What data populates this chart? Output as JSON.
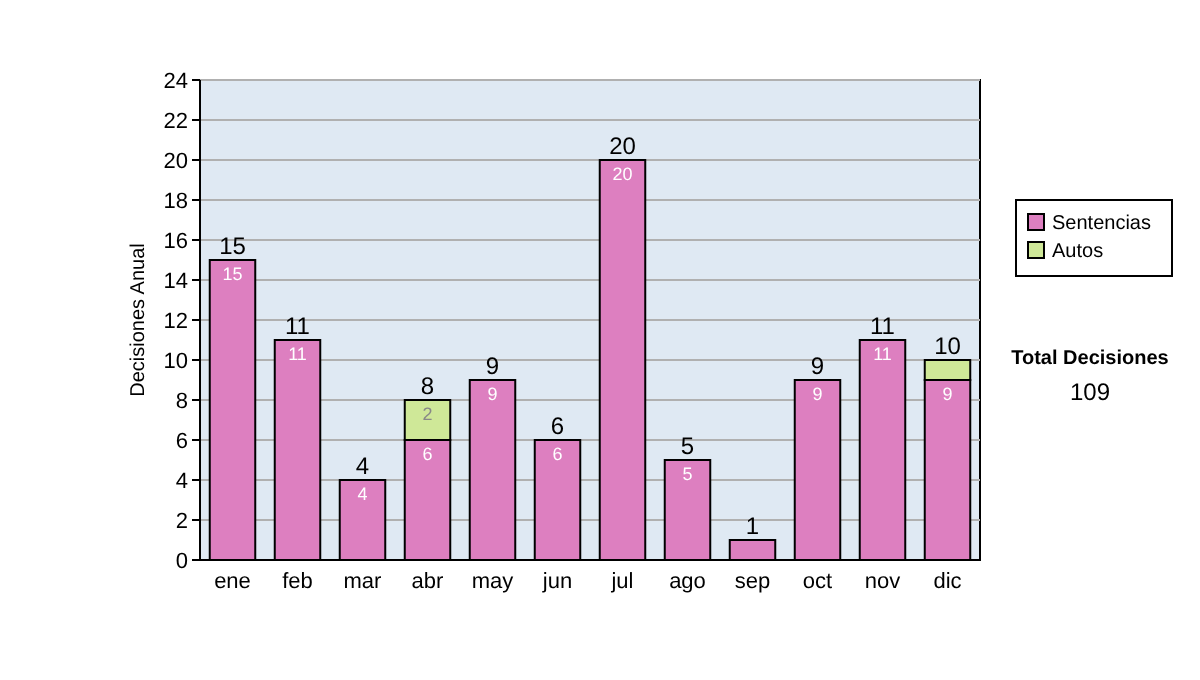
{
  "chart_data": {
    "type": "bar",
    "stacked": true,
    "ylabel": "Decisiones Anual",
    "categories": [
      "ene",
      "feb",
      "mar",
      "abr",
      "may",
      "jun",
      "jul",
      "ago",
      "sep",
      "oct",
      "nov",
      "dic"
    ],
    "series": [
      {
        "name": "Sentencias",
        "color": "#dd7fc0",
        "values": [
          15,
          11,
          4,
          6,
          9,
          6,
          20,
          5,
          1,
          9,
          11,
          9
        ],
        "value_labels": [
          "15",
          "11",
          "4",
          "6",
          "9",
          "6",
          "20",
          "5",
          null,
          "9",
          "11",
          "9"
        ]
      },
      {
        "name": "Autos",
        "color": "#cfe898",
        "values": [
          null,
          null,
          null,
          2,
          null,
          null,
          null,
          null,
          null,
          null,
          null,
          1
        ],
        "value_labels": [
          null,
          null,
          null,
          "2",
          null,
          null,
          null,
          null,
          null,
          null,
          null,
          null
        ]
      }
    ],
    "totals": [
      "15",
      "11",
      "4",
      "8",
      "9",
      "6",
      "20",
      "5",
      "1",
      "9",
      "11",
      "10"
    ],
    "ylim": [
      0,
      24
    ],
    "yticks": [
      0,
      2,
      4,
      6,
      8,
      10,
      12,
      14,
      16,
      18,
      20,
      22,
      24
    ],
    "grid": "y",
    "legend": "right",
    "annotations": [
      "Total Decisiones",
      "109"
    ]
  }
}
